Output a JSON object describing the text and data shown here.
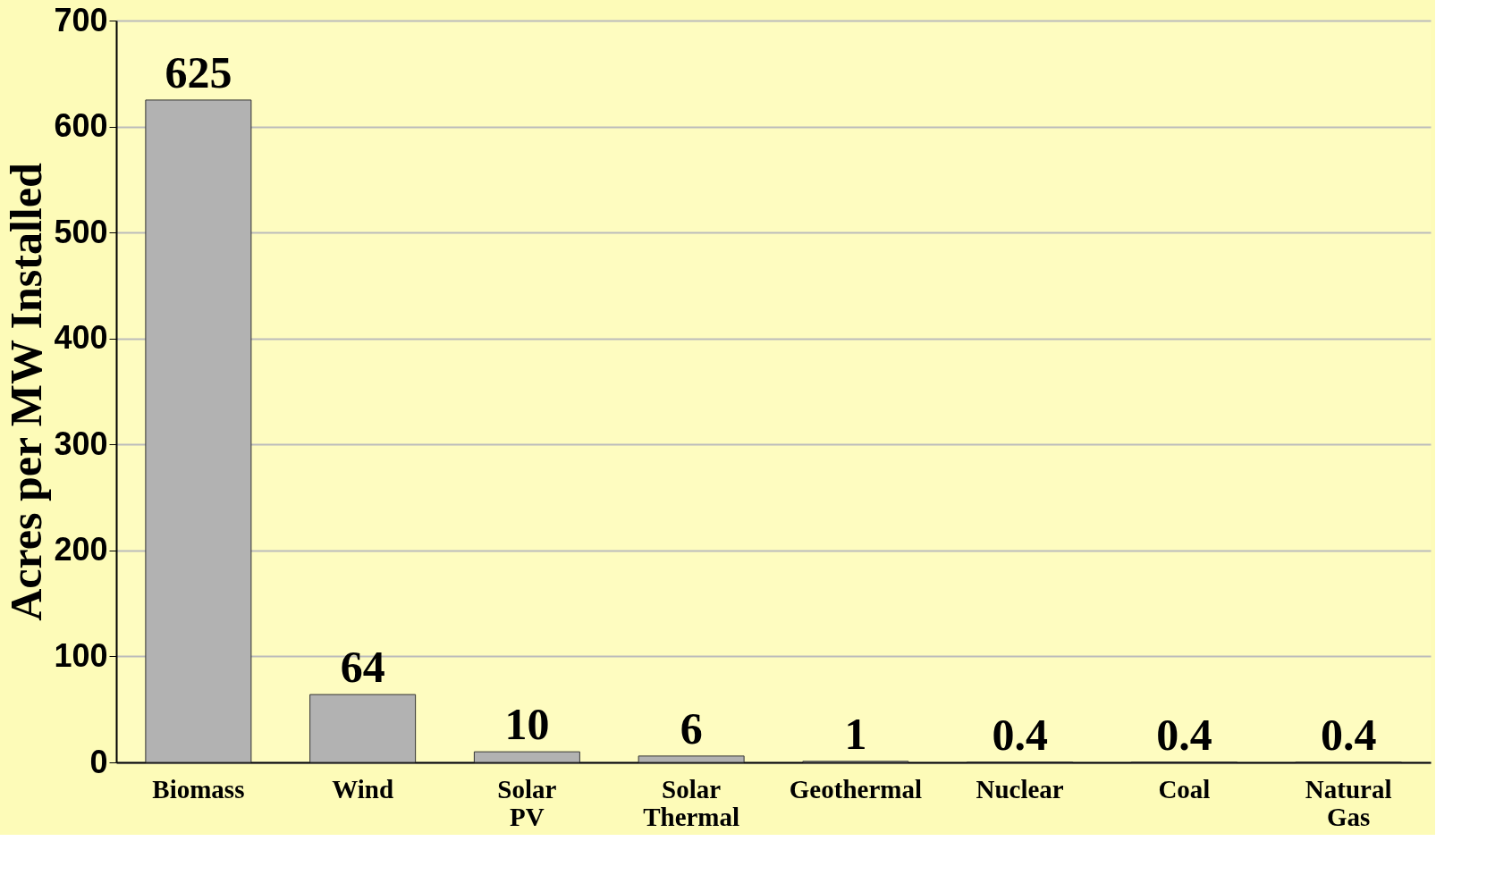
{
  "chart_data": {
    "type": "bar",
    "ylabel": "Acres per MW Installed",
    "categories": [
      "Biomass",
      "Wind",
      "Solar PV",
      "Solar Thermal",
      "Geothermal",
      "Nuclear",
      "Coal",
      "Natural Gas"
    ],
    "values": [
      625,
      64,
      10,
      6,
      1,
      0.4,
      0.4,
      0.4
    ],
    "color": "#b2b2b2",
    "ylim": [
      0,
      700
    ],
    "yticks": [
      0,
      100,
      200,
      300,
      400,
      500,
      600,
      700
    ],
    "grid": "y",
    "data_labels": true
  }
}
